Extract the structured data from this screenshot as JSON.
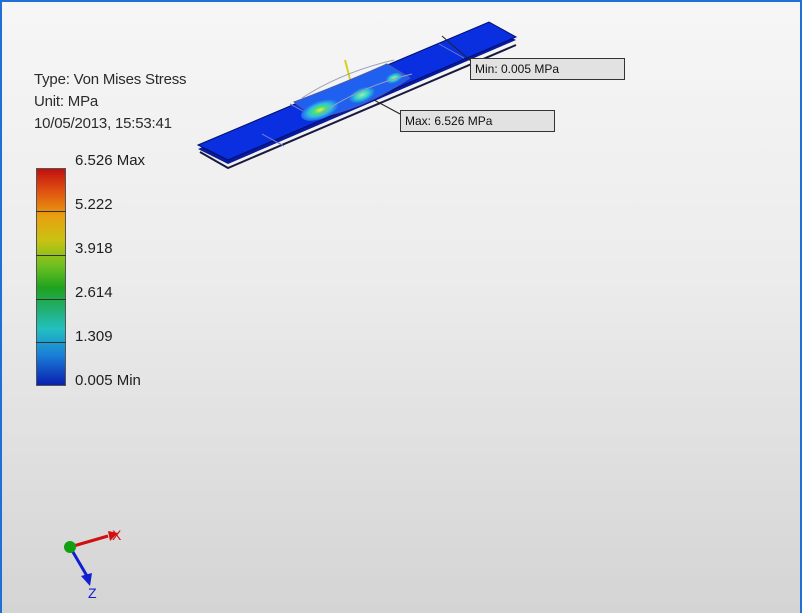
{
  "result_info": {
    "type_line": "Type: Von Mises Stress",
    "unit_line": "Unit: MPa",
    "timestamp": "10/05/2013, 15:53:41"
  },
  "legend": {
    "labels": [
      "6.526 Max",
      "5.222",
      "3.918",
      "2.614",
      "1.309",
      "0.005 Min"
    ],
    "colors": [
      "#c01010",
      "#e8a010",
      "#c9c212",
      "#1fa21f",
      "#22c0c0",
      "#0a20b0"
    ]
  },
  "probes": {
    "min_label": "Min: 0.005 MPa",
    "max_label": "Max: 6.526 MPa"
  },
  "triad": {
    "x_label": "X",
    "z_label": "Z",
    "x_color": "#d01010",
    "y_color": "#12a012",
    "z_color": "#1020d0"
  },
  "colors": {
    "viewport_border": "#1f6fd6",
    "model_base": "#0a2fe0"
  }
}
